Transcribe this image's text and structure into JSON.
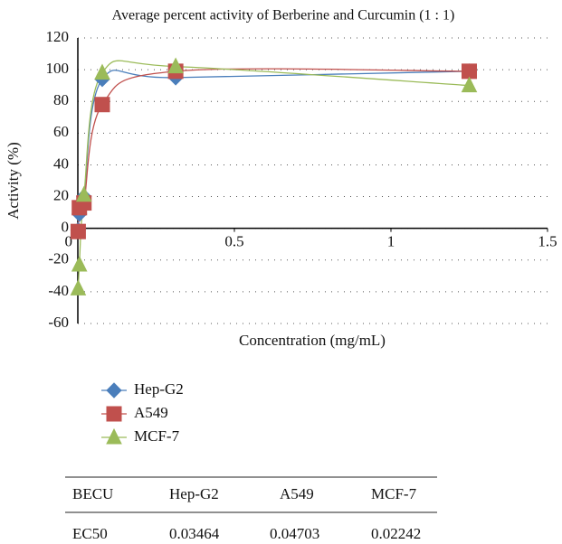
{
  "chart_data": {
    "type": "line",
    "title": "Average percent activity of Berberine and Curcumin (1 : 1)",
    "x_label": "Concentration (mg/mL)",
    "y_label": "Activity (%)",
    "x": [
      0.0012,
      0.0049,
      0.0195,
      0.078,
      0.3125,
      1.25
    ],
    "series": [
      {
        "name": "Hep-G2",
        "color": "#4a7ebb",
        "marker": "diamond",
        "values": [
          -1,
          9,
          20,
          94,
          95,
          99
        ]
      },
      {
        "name": "A549",
        "color": "#c0504d",
        "marker": "square",
        "values": [
          -2,
          13,
          16,
          78,
          99,
          99
        ]
      },
      {
        "name": "MCF-7",
        "color": "#9bbb59",
        "marker": "triangle",
        "values": [
          -38,
          -23,
          21,
          98,
          102,
          90
        ]
      }
    ],
    "xlim": [
      0,
      1.5
    ],
    "xticks": [
      0,
      0.5,
      1,
      1.5
    ],
    "ylim": [
      -60,
      120
    ],
    "yticks": [
      -60,
      -40,
      -20,
      0,
      20,
      40,
      60,
      80,
      100,
      120
    ],
    "grid": true,
    "smooth": true
  },
  "table": {
    "header": [
      "BECU",
      "Hep-G2",
      "A549",
      "MCF-7"
    ],
    "rows": [
      [
        "EC50",
        "0.03464",
        "0.04703",
        "0.02242"
      ]
    ]
  }
}
